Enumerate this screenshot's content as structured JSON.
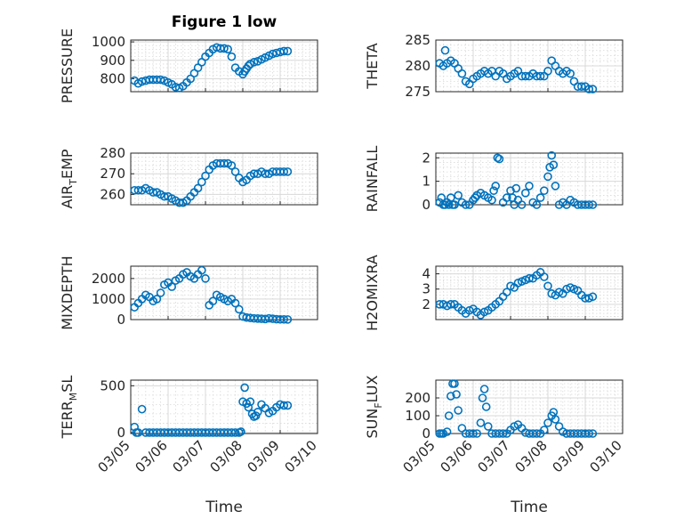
{
  "figure_title": "Figure 1 low",
  "colors": {
    "marker": "#0072bd",
    "axis": "#262626",
    "grid": "#d9d9d9"
  },
  "x_ticks": [
    "03/05",
    "03/06",
    "03/07",
    "03/08",
    "03/09",
    "03/10"
  ],
  "x_label": "Time",
  "chart_data": [
    {
      "id": "pressure",
      "type": "scatter",
      "ylabel": "PRESSURE",
      "ylim": [
        730,
        1010
      ],
      "yticks": [
        800,
        900,
        1000
      ],
      "xlim": [
        0,
        5
      ],
      "grid": true,
      "x": [
        0.1,
        0.2,
        0.3,
        0.4,
        0.5,
        0.6,
        0.7,
        0.8,
        0.9,
        1.0,
        1.1,
        1.2,
        1.3,
        1.4,
        1.5,
        1.6,
        1.7,
        1.8,
        1.9,
        2.0,
        2.1,
        2.2,
        2.3,
        2.4,
        2.5,
        2.6,
        2.7,
        2.8,
        2.9,
        3.0,
        3.05,
        3.1,
        3.15,
        3.2,
        3.3,
        3.4,
        3.5,
        3.6,
        3.7,
        3.8,
        3.9,
        4.0,
        4.1,
        4.2
      ],
      "y": [
        790,
        775,
        785,
        790,
        795,
        795,
        795,
        795,
        790,
        780,
        770,
        755,
        750,
        760,
        780,
        800,
        830,
        860,
        890,
        920,
        940,
        960,
        970,
        965,
        965,
        960,
        920,
        860,
        840,
        825,
        840,
        855,
        870,
        880,
        890,
        895,
        905,
        915,
        925,
        935,
        940,
        945,
        950,
        950
      ]
    },
    {
      "id": "theta",
      "type": "scatter",
      "ylabel": "THETA",
      "ylim": [
        275,
        285
      ],
      "yticks": [
        275,
        280,
        285
      ],
      "xlim": [
        0,
        5
      ],
      "grid": true,
      "x": [
        0.1,
        0.2,
        0.25,
        0.3,
        0.4,
        0.5,
        0.6,
        0.7,
        0.8,
        0.9,
        1.0,
        1.1,
        1.2,
        1.3,
        1.4,
        1.5,
        1.6,
        1.7,
        1.8,
        1.9,
        2.0,
        2.1,
        2.2,
        2.3,
        2.4,
        2.5,
        2.6,
        2.7,
        2.8,
        2.9,
        3.0,
        3.1,
        3.2,
        3.3,
        3.4,
        3.5,
        3.6,
        3.7,
        3.8,
        3.9,
        4.0,
        4.1,
        4.2
      ],
      "y": [
        280.5,
        280,
        283,
        280.5,
        281,
        280.5,
        279.5,
        278.5,
        277,
        276.5,
        277.5,
        278,
        278.5,
        279,
        278.5,
        279,
        278,
        279,
        278.5,
        277.5,
        278,
        278.5,
        279,
        278,
        278,
        278,
        278.5,
        278,
        278,
        278,
        279,
        281,
        280,
        279,
        278.5,
        279,
        278.5,
        277,
        276,
        276,
        276,
        275.5,
        275.5
      ]
    },
    {
      "id": "air_temp",
      "type": "scatter",
      "ylabel": "AIR",
      "ylabel_sub": "T",
      "ylabel_tail": "EMP",
      "ylim": [
        255,
        280
      ],
      "yticks": [
        260,
        270,
        280
      ],
      "xlim": [
        0,
        5
      ],
      "grid": true,
      "x": [
        0.1,
        0.2,
        0.3,
        0.4,
        0.5,
        0.6,
        0.7,
        0.8,
        0.9,
        1.0,
        1.1,
        1.2,
        1.3,
        1.4,
        1.5,
        1.6,
        1.7,
        1.8,
        1.9,
        2.0,
        2.1,
        2.2,
        2.3,
        2.4,
        2.5,
        2.6,
        2.7,
        2.8,
        2.9,
        3.0,
        3.1,
        3.2,
        3.3,
        3.4,
        3.5,
        3.6,
        3.7,
        3.8,
        3.9,
        4.0,
        4.1,
        4.2
      ],
      "y": [
        262,
        262,
        262,
        263,
        262,
        261,
        261,
        260,
        259,
        259,
        258,
        257,
        256,
        256,
        257,
        259,
        261,
        263,
        266,
        269,
        272,
        274,
        275,
        275,
        275,
        275,
        274,
        271,
        268,
        266,
        267,
        269,
        270,
        270,
        271,
        270,
        270,
        271,
        271,
        271,
        271,
        271
      ],
      "note": ""
    },
    {
      "id": "rainfall",
      "type": "scatter",
      "ylabel": "RAINFALL",
      "ylim": [
        0,
        2.2
      ],
      "yticks": [
        0,
        1,
        2
      ],
      "xlim": [
        0,
        5
      ],
      "grid": true,
      "x": [
        0.1,
        0.15,
        0.2,
        0.25,
        0.3,
        0.35,
        0.4,
        0.45,
        0.5,
        0.6,
        0.7,
        0.8,
        0.9,
        1.0,
        1.05,
        1.1,
        1.2,
        1.3,
        1.4,
        1.5,
        1.55,
        1.6,
        1.65,
        1.7,
        1.8,
        1.9,
        2.0,
        2.05,
        2.1,
        2.15,
        2.2,
        2.3,
        2.4,
        2.5,
        2.6,
        2.7,
        2.8,
        2.9,
        3.0,
        3.05,
        3.1,
        3.15,
        3.2,
        3.3,
        3.4,
        3.5,
        3.6,
        3.7,
        3.8,
        3.9,
        4.0,
        4.1,
        4.2
      ],
      "y": [
        0.1,
        0.3,
        0,
        0,
        0.1,
        0,
        0.3,
        0,
        0,
        0.4,
        0.1,
        0,
        0,
        0.2,
        0.3,
        0.4,
        0.5,
        0.4,
        0.3,
        0.2,
        0.6,
        0.8,
        2.0,
        1.95,
        0.1,
        0.3,
        0.6,
        0.3,
        0,
        0.7,
        0.2,
        0,
        0.5,
        0.8,
        0.1,
        0,
        0.3,
        0.6,
        1.2,
        1.6,
        2.1,
        1.7,
        0.8,
        0,
        0.1,
        0,
        0.2,
        0.1,
        0,
        0,
        0,
        0,
        0
      ]
    },
    {
      "id": "mixdepth",
      "type": "scatter",
      "ylabel": "MIXDEPTH",
      "ylim": [
        0,
        2600
      ],
      "yticks": [
        0,
        1000,
        2000
      ],
      "xlim": [
        0,
        5
      ],
      "grid": true,
      "x": [
        0.1,
        0.2,
        0.3,
        0.4,
        0.5,
        0.6,
        0.7,
        0.8,
        0.9,
        1.0,
        1.1,
        1.2,
        1.3,
        1.4,
        1.5,
        1.6,
        1.7,
        1.8,
        1.9,
        2.0,
        2.1,
        2.2,
        2.3,
        2.4,
        2.5,
        2.6,
        2.7,
        2.8,
        2.9,
        3.0,
        3.1,
        3.2,
        3.3,
        3.4,
        3.5,
        3.6,
        3.7,
        3.8,
        3.9,
        4.0,
        4.1,
        4.2
      ],
      "y": [
        600,
        800,
        1000,
        1200,
        1100,
        900,
        1000,
        1300,
        1700,
        1800,
        1600,
        1900,
        2000,
        2200,
        2300,
        2100,
        2000,
        2200,
        2400,
        2000,
        700,
        900,
        1200,
        1100,
        1000,
        900,
        1000,
        800,
        500,
        150,
        100,
        80,
        60,
        50,
        40,
        30,
        60,
        40,
        20,
        10,
        10,
        5
      ]
    },
    {
      "id": "h2omixra",
      "type": "scatter",
      "ylabel": "H2OMIXRA",
      "ylim": [
        1,
        4.5
      ],
      "yticks": [
        2,
        3,
        4
      ],
      "xlim": [
        0,
        5
      ],
      "grid": true,
      "x": [
        0.1,
        0.2,
        0.3,
        0.4,
        0.5,
        0.6,
        0.7,
        0.8,
        0.9,
        1.0,
        1.1,
        1.2,
        1.3,
        1.4,
        1.5,
        1.6,
        1.7,
        1.8,
        1.9,
        2.0,
        2.1,
        2.2,
        2.3,
        2.4,
        2.5,
        2.6,
        2.7,
        2.8,
        2.9,
        3.0,
        3.1,
        3.2,
        3.3,
        3.4,
        3.5,
        3.6,
        3.7,
        3.8,
        3.9,
        4.0,
        4.1,
        4.2
      ],
      "y": [
        2,
        2,
        1.9,
        2,
        2,
        1.8,
        1.6,
        1.4,
        1.6,
        1.7,
        1.5,
        1.3,
        1.5,
        1.6,
        1.8,
        2,
        2.2,
        2.5,
        2.8,
        3.2,
        3.1,
        3.4,
        3.5,
        3.6,
        3.7,
        3.7,
        3.9,
        4.1,
        3.8,
        3.2,
        2.7,
        2.6,
        2.8,
        2.7,
        3.0,
        3.1,
        3.0,
        2.9,
        2.6,
        2.4,
        2.4,
        2.5
      ]
    },
    {
      "id": "terr_msl",
      "type": "scatter",
      "ylabel": "TERR",
      "ylabel_sub": "M",
      "ylabel_tail": "SL",
      "ylim": [
        -10,
        560
      ],
      "yticks": [
        0,
        500
      ],
      "xlim": [
        0,
        5
      ],
      "grid": true,
      "x": [
        0.1,
        0.15,
        0.2,
        0.3,
        0.4,
        0.5,
        0.6,
        0.7,
        0.8,
        0.9,
        1.0,
        1.1,
        1.2,
        1.3,
        1.4,
        1.5,
        1.6,
        1.7,
        1.8,
        1.9,
        2.0,
        2.1,
        2.2,
        2.3,
        2.4,
        2.5,
        2.6,
        2.7,
        2.8,
        2.9,
        2.95,
        3.0,
        3.05,
        3.1,
        3.15,
        3.2,
        3.25,
        3.3,
        3.35,
        3.4,
        3.5,
        3.6,
        3.7,
        3.8,
        3.9,
        4.0,
        4.1,
        4.2
      ],
      "y": [
        60,
        0,
        0,
        250,
        0,
        0,
        0,
        0,
        0,
        0,
        0,
        0,
        0,
        0,
        0,
        0,
        0,
        0,
        0,
        0,
        0,
        0,
        0,
        0,
        0,
        0,
        0,
        0,
        0,
        0,
        10,
        330,
        480,
        310,
        270,
        330,
        200,
        170,
        180,
        220,
        300,
        260,
        210,
        230,
        270,
        300,
        290,
        290
      ]
    },
    {
      "id": "sun_flux",
      "type": "scatter",
      "ylabel": "SUN",
      "ylabel_sub": "F",
      "ylabel_tail": "LUX",
      "ylim": [
        0,
        300
      ],
      "yticks": [
        0,
        100,
        200
      ],
      "xlim": [
        0,
        5
      ],
      "grid": true,
      "x": [
        0.1,
        0.15,
        0.2,
        0.3,
        0.35,
        0.4,
        0.45,
        0.5,
        0.55,
        0.6,
        0.7,
        0.8,
        0.9,
        1.0,
        1.1,
        1.2,
        1.25,
        1.3,
        1.35,
        1.4,
        1.5,
        1.6,
        1.7,
        1.8,
        1.9,
        2.0,
        2.1,
        2.2,
        2.3,
        2.4,
        2.5,
        2.6,
        2.7,
        2.8,
        2.9,
        3.0,
        3.1,
        3.15,
        3.2,
        3.3,
        3.4,
        3.5,
        3.6,
        3.7,
        3.8,
        3.9,
        4.0,
        4.1,
        4.2
      ],
      "y": [
        0,
        0,
        0,
        10,
        100,
        210,
        280,
        280,
        220,
        130,
        30,
        0,
        0,
        0,
        0,
        60,
        200,
        250,
        150,
        40,
        0,
        0,
        0,
        0,
        0,
        20,
        40,
        50,
        30,
        5,
        0,
        0,
        0,
        0,
        20,
        60,
        100,
        120,
        80,
        40,
        10,
        0,
        0,
        0,
        0,
        0,
        0,
        0,
        0
      ]
    }
  ]
}
